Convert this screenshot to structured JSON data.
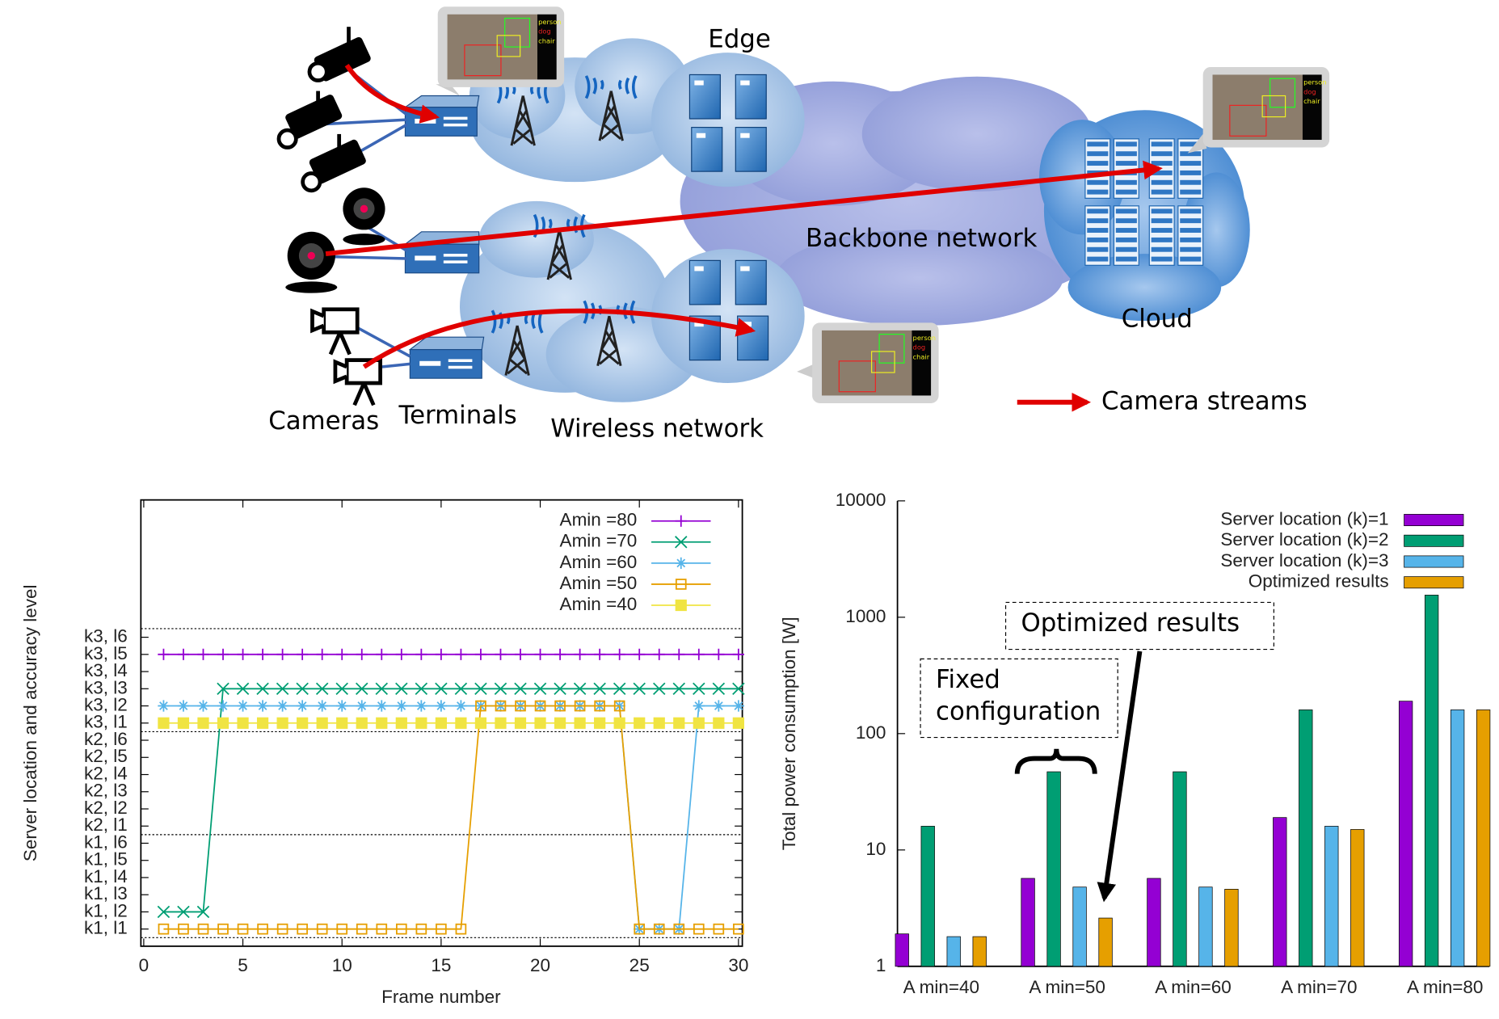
{
  "diagram": {
    "edge": "Edge",
    "backbone": "Backbone network",
    "cloud": "Cloud",
    "cameras": "Cameras",
    "terminals": "Terminals",
    "wireless": "Wireless network",
    "legend": "Camera streams",
    "thumbnail_labels": [
      "person",
      "dog",
      "chair"
    ]
  },
  "chart_data": [
    {
      "type": "line",
      "xlabel": "Frame number",
      "ylabel": "Server location and accuracy level",
      "x": [
        1,
        2,
        3,
        4,
        5,
        6,
        7,
        8,
        9,
        10,
        11,
        12,
        13,
        14,
        15,
        16,
        17,
        18,
        19,
        20,
        21,
        22,
        23,
        24,
        25,
        26,
        27,
        28,
        29,
        30
      ],
      "xlim": [
        0,
        30
      ],
      "xticks": [
        0,
        5,
        10,
        15,
        20,
        25,
        30
      ],
      "ylim": [
        0,
        26
      ],
      "yticks": [
        {
          "value": 1,
          "label": "k1, l1"
        },
        {
          "value": 2,
          "label": "k1, l2"
        },
        {
          "value": 3,
          "label": "k1, l3"
        },
        {
          "value": 4,
          "label": "k1, l4"
        },
        {
          "value": 5,
          "label": "k1, l5"
        },
        {
          "value": 6,
          "label": "k1, l6"
        },
        {
          "value": 7,
          "label": "k2, l1"
        },
        {
          "value": 8,
          "label": "k2, l2"
        },
        {
          "value": 9,
          "label": "k2, l3"
        },
        {
          "value": 10,
          "label": "k2, l4"
        },
        {
          "value": 11,
          "label": "k2, l5"
        },
        {
          "value": 12,
          "label": "k2, l6"
        },
        {
          "value": 13,
          "label": "k3, l1"
        },
        {
          "value": 14,
          "label": "k3, l2"
        },
        {
          "value": 15,
          "label": "k3, l3"
        },
        {
          "value": 16,
          "label": "k3, l4"
        },
        {
          "value": 17,
          "label": "k3, l5"
        },
        {
          "value": 18,
          "label": "k3, l6"
        }
      ],
      "reference_lines": [
        0.5,
        6.5,
        12.5,
        18.5
      ],
      "legend": "upper right",
      "series": [
        {
          "name": "Amin =80",
          "color": "#9400d3",
          "marker": "plus",
          "values": [
            17,
            17,
            17,
            17,
            17,
            17,
            17,
            17,
            17,
            17,
            17,
            17,
            17,
            17,
            17,
            17,
            17,
            17,
            17,
            17,
            17,
            17,
            17,
            17,
            17,
            17,
            17,
            17,
            17,
            17
          ]
        },
        {
          "name": "Amin =70",
          "color": "#009e73",
          "marker": "cross",
          "values": [
            2,
            2,
            2,
            15,
            15,
            15,
            15,
            15,
            15,
            15,
            15,
            15,
            15,
            15,
            15,
            15,
            15,
            15,
            15,
            15,
            15,
            15,
            15,
            15,
            15,
            15,
            15,
            15,
            15,
            15
          ]
        },
        {
          "name": "Amin =60",
          "color": "#56b4e9",
          "marker": "star",
          "values": [
            14,
            14,
            14,
            14,
            14,
            14,
            14,
            14,
            14,
            14,
            14,
            14,
            14,
            14,
            14,
            14,
            14,
            14,
            14,
            14,
            14,
            14,
            14,
            14,
            1,
            1,
            1,
            14,
            14,
            14
          ]
        },
        {
          "name": "Amin =50",
          "color": "#e69f00",
          "marker": "open-square",
          "values": [
            1,
            1,
            1,
            1,
            1,
            1,
            1,
            1,
            1,
            1,
            1,
            1,
            1,
            1,
            1,
            1,
            14,
            14,
            14,
            14,
            14,
            14,
            14,
            14,
            1,
            1,
            1,
            1,
            1,
            1
          ]
        },
        {
          "name": "Amin =40",
          "color": "#f0e442",
          "marker": "filled-square",
          "values": [
            13,
            13,
            13,
            13,
            13,
            13,
            13,
            13,
            13,
            13,
            13,
            13,
            13,
            13,
            13,
            13,
            13,
            13,
            13,
            13,
            13,
            13,
            13,
            13,
            13,
            13,
            13,
            13,
            13,
            13
          ]
        }
      ]
    },
    {
      "type": "bar",
      "ylabel": "Total power consumption [W]",
      "log_scale": true,
      "categories": [
        "A min=40",
        "A min=50",
        "A min=60",
        "A min=70",
        "A min=80"
      ],
      "ylim": [
        1,
        10000
      ],
      "yticks": [
        1,
        10,
        100,
        1000,
        10000
      ],
      "legend": "upper right",
      "annotations": [
        [
          "Optimized results"
        ],
        [
          "Fixed",
          "configuration"
        ]
      ],
      "series": [
        {
          "name": "Server location (k)=1",
          "color": "#9400d3",
          "values": [
            1.9,
            5.7,
            5.7,
            19,
            190
          ]
        },
        {
          "name": "Server location (k)=2",
          "color": "#009e73",
          "values": [
            16,
            47,
            47,
            160,
            1550
          ]
        },
        {
          "name": "Server location (k)=3",
          "color": "#56b4e9",
          "values": [
            1.8,
            4.8,
            4.8,
            16,
            160
          ]
        },
        {
          "name": "Optimized results",
          "color": "#e69f00",
          "values": [
            1.8,
            2.6,
            4.6,
            15,
            160
          ]
        }
      ]
    }
  ]
}
